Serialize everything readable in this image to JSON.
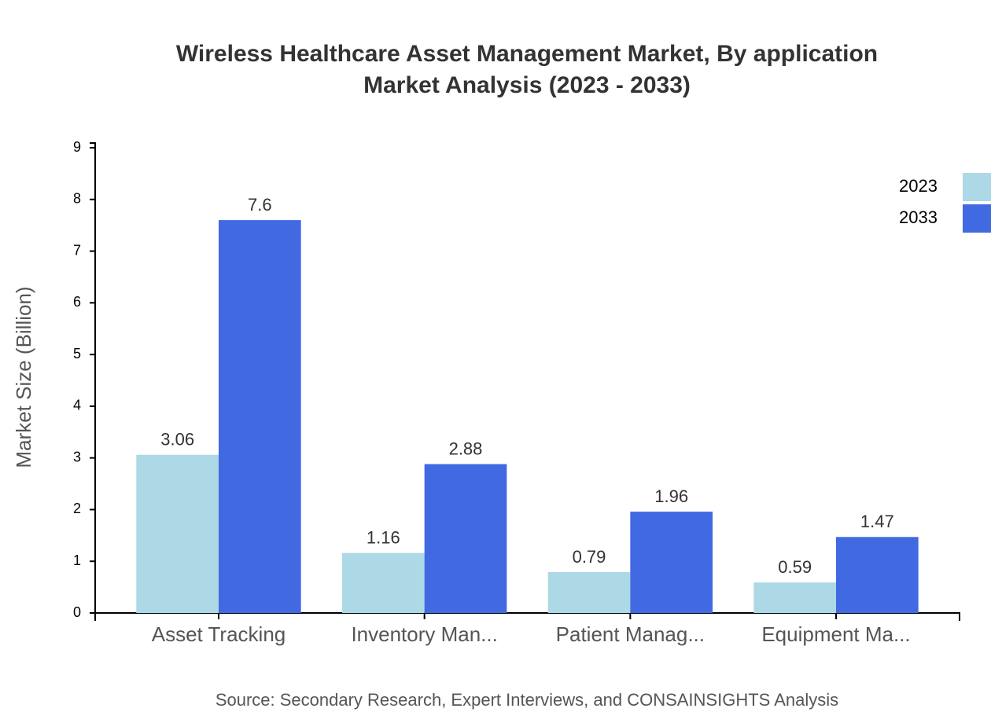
{
  "chart_data": {
    "type": "bar",
    "title": "Wireless Healthcare Asset Management Market, By application",
    "subtitle": "Market Analysis (2023 - 2033)",
    "y_label": "Market Size (Billion)",
    "source": "Source: Secondary Research, Expert Interviews, and CONSAINSIGHTS Analysis",
    "categories": [
      "Asset Tracking",
      "Inventory Man...",
      "Patient Manag...",
      "Equipment Ma..."
    ],
    "series": [
      {
        "name": "2023",
        "color": "#add8e6",
        "values": [
          3.06,
          1.16,
          0.79,
          0.59
        ]
      },
      {
        "name": "2033",
        "color": "#4169e1",
        "values": [
          7.6,
          2.88,
          1.96,
          1.47
        ]
      }
    ],
    "ylim": [
      0,
      9
    ],
    "yticks": [
      0,
      1,
      2,
      3,
      4,
      5,
      6,
      7,
      8,
      9
    ],
    "legend": "top-right"
  }
}
